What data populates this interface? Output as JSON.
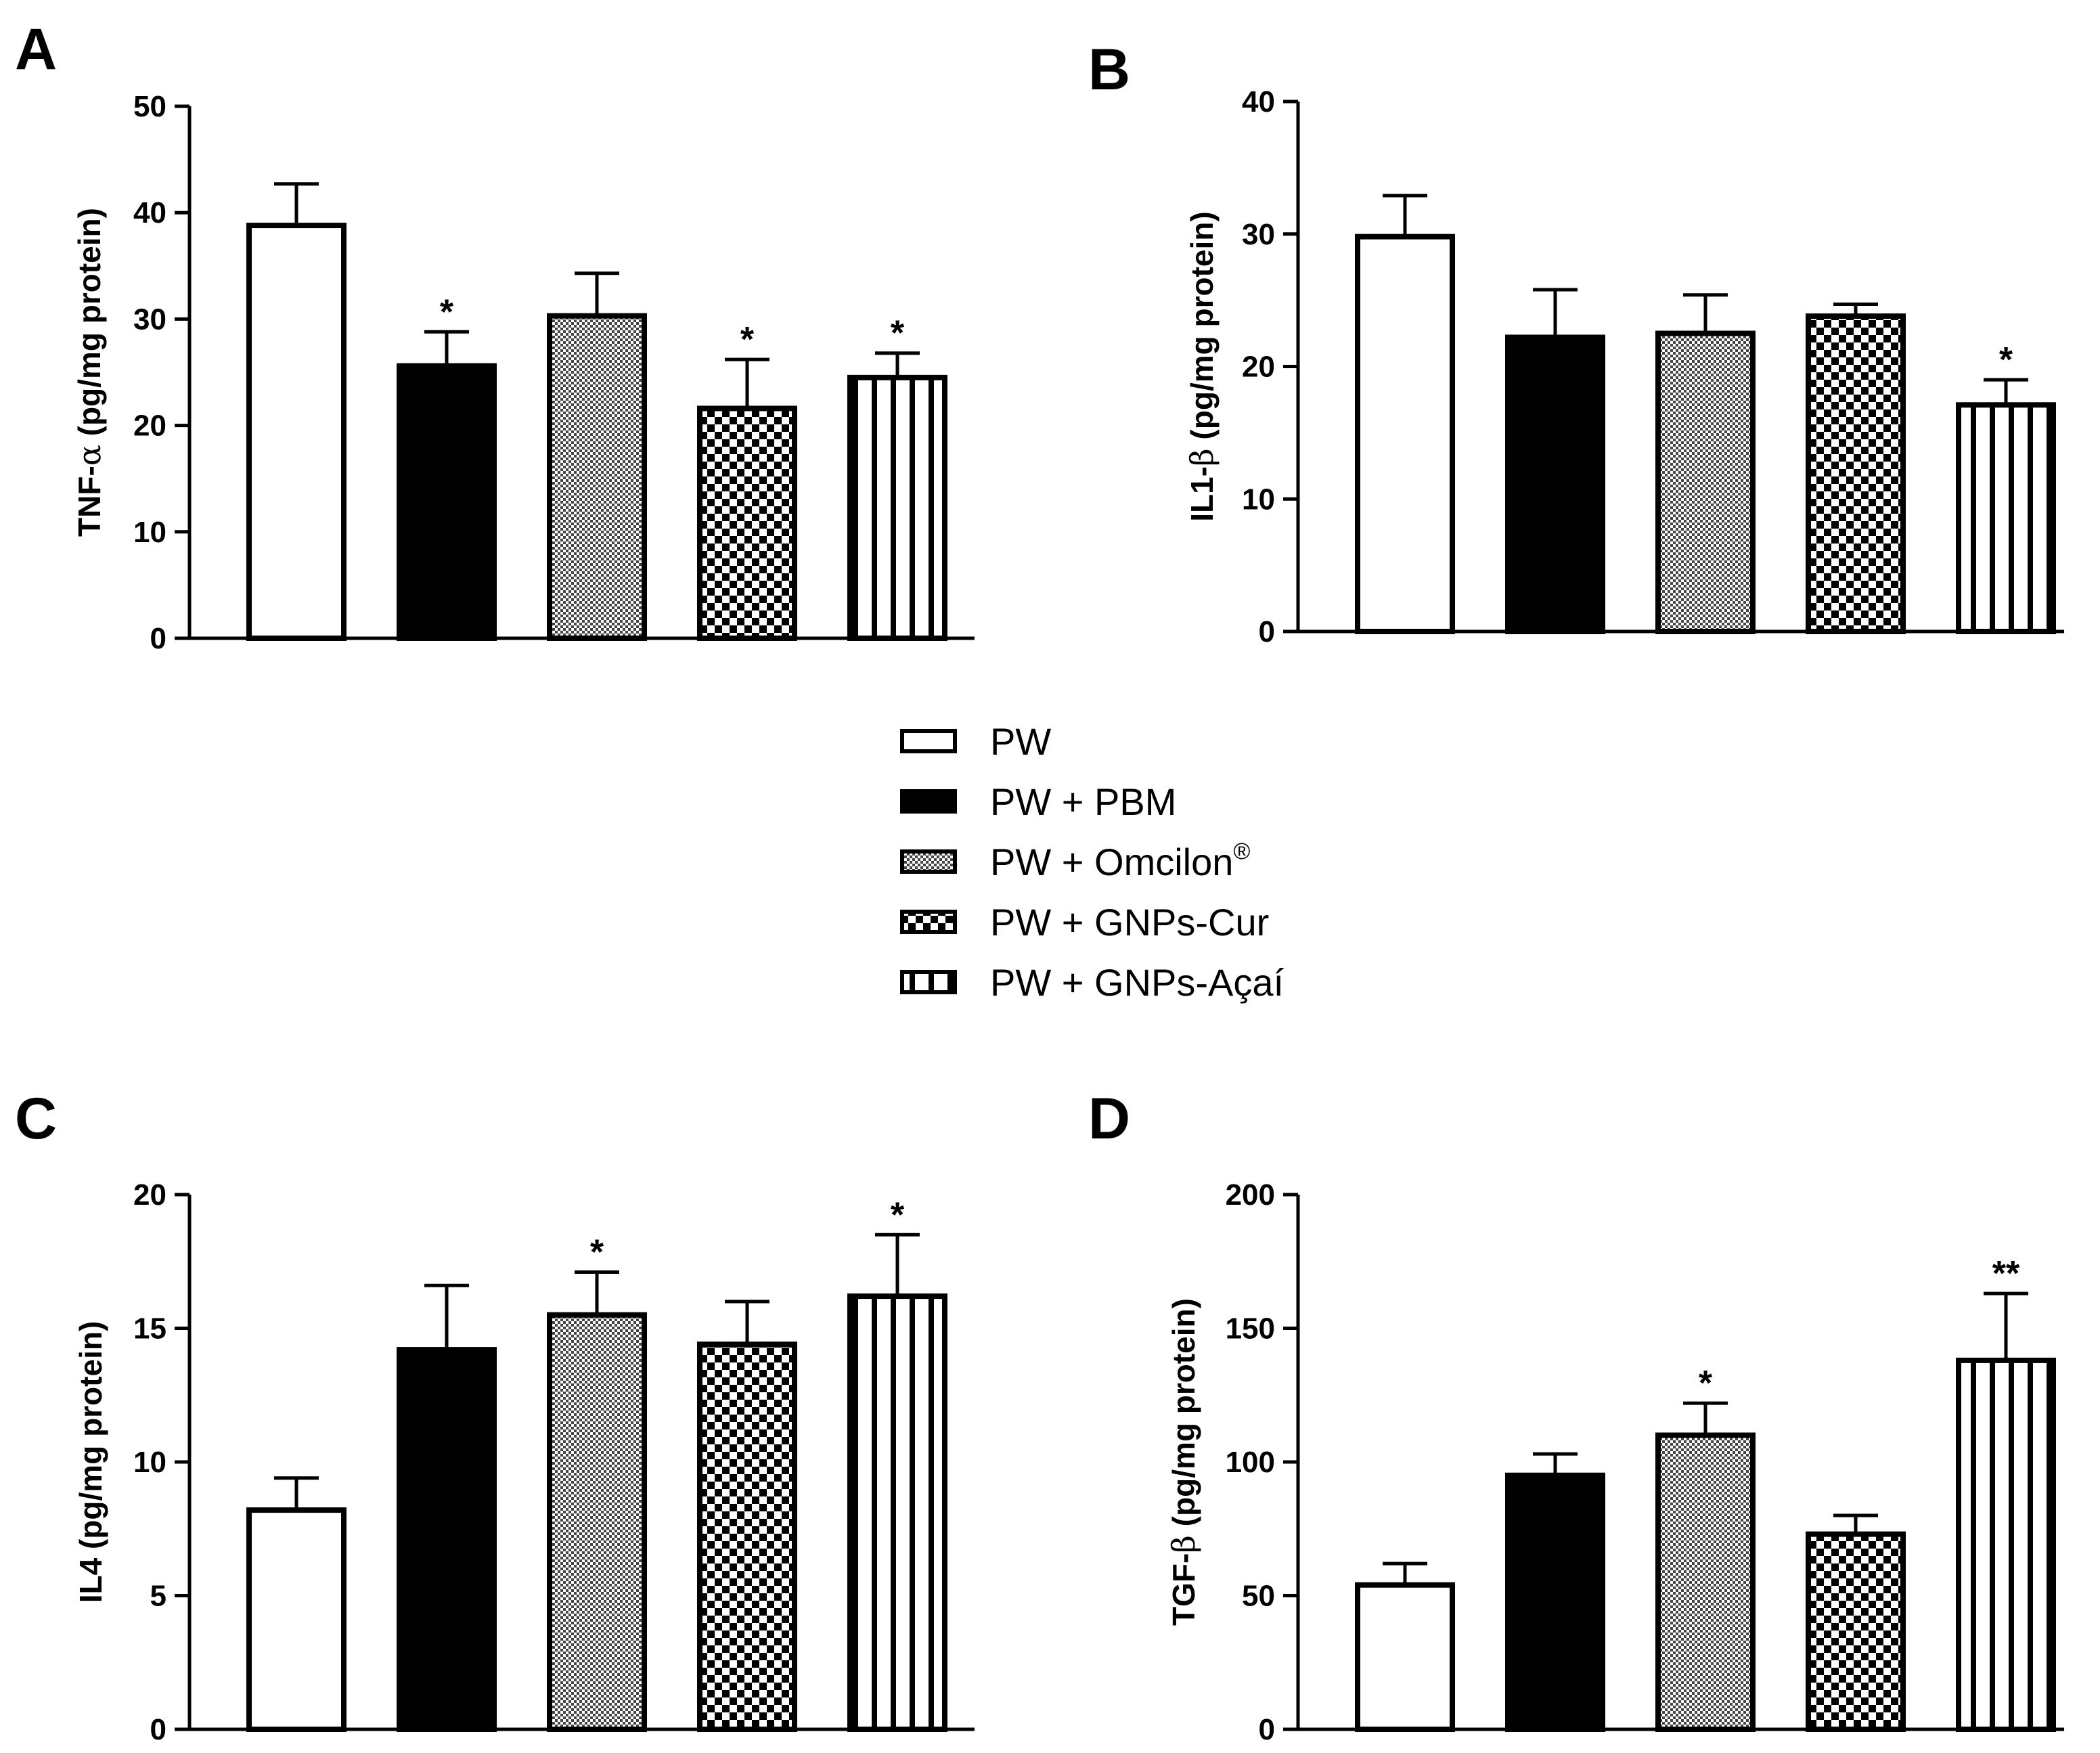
{
  "chart_data": [
    {
      "type": "bar",
      "panel": "A",
      "ylabel_prefix": "TNF-",
      "ylabel_greek": "α",
      "ylabel_suffix": " (pg/mg protein)",
      "ylim": [
        0,
        50
      ],
      "yticks": [
        "0",
        "10",
        "20",
        "30",
        "40",
        "50"
      ],
      "categories": [
        "PW",
        "PW + PBM",
        "PW + Omcilon®",
        "PW + GNPs-Cur",
        "PW + GNPs-Açaí"
      ],
      "values": [
        38.8,
        25.6,
        30.3,
        21.6,
        24.5
      ],
      "errors": [
        3.9,
        3.2,
        4.0,
        4.6,
        2.3
      ],
      "significance": [
        "",
        "*",
        "",
        "*",
        "*"
      ]
    },
    {
      "type": "bar",
      "panel": "B",
      "ylabel_prefix": "IL1-",
      "ylabel_greek": "β",
      "ylabel_suffix": " (pg/mg protein)",
      "ylim": [
        0,
        40
      ],
      "yticks": [
        "0",
        "10",
        "20",
        "30",
        "40"
      ],
      "categories": [
        "PW",
        "PW + PBM",
        "PW + Omcilon®",
        "PW + GNPs-Cur",
        "PW + GNPs-Açaí"
      ],
      "values": [
        29.8,
        22.2,
        22.5,
        23.8,
        17.1
      ],
      "errors": [
        3.1,
        3.6,
        2.9,
        0.9,
        1.9
      ],
      "significance": [
        "",
        "",
        "",
        "",
        "*"
      ]
    },
    {
      "type": "bar",
      "panel": "C",
      "ylabel_prefix": "IL4 (pg/mg protein)",
      "ylabel_greek": "",
      "ylabel_suffix": "",
      "ylim": [
        0,
        20
      ],
      "yticks": [
        "0",
        "5",
        "10",
        "15",
        "20"
      ],
      "categories": [
        "PW",
        "PW + PBM",
        "PW + Omcilon®",
        "PW + GNPs-Cur",
        "PW + GNPs-Açaí"
      ],
      "values": [
        8.2,
        14.2,
        15.5,
        14.4,
        16.2
      ],
      "errors": [
        1.2,
        2.4,
        1.6,
        1.6,
        2.3
      ],
      "significance": [
        "",
        "",
        "*",
        "",
        "*"
      ]
    },
    {
      "type": "bar",
      "panel": "D",
      "ylabel_prefix": "TGF-",
      "ylabel_greek": "β",
      "ylabel_suffix": " (pg/mg protein)",
      "ylim": [
        0,
        200
      ],
      "yticks": [
        "0",
        "50",
        "100",
        "150",
        "200"
      ],
      "categories": [
        "PW",
        "PW + PBM",
        "PW + Omcilon®",
        "PW + GNPs-Cur",
        "PW + GNPs-Açaí"
      ],
      "values": [
        54,
        95,
        110,
        73,
        138
      ],
      "errors": [
        8,
        8,
        12,
        7,
        25
      ],
      "significance": [
        "",
        "",
        "*",
        "",
        "**"
      ]
    }
  ],
  "legend": {
    "items": [
      {
        "name": "PW",
        "label": "PW",
        "sup": ""
      },
      {
        "name": "PW + PBM",
        "label": "PW + PBM",
        "sup": ""
      },
      {
        "name": "PW + Omcilon",
        "label": "PW + Omcilon",
        "sup": "®"
      },
      {
        "name": "PW + GNPs-Cur",
        "label": "PW + GNPs-Cur",
        "sup": ""
      },
      {
        "name": "PW + GNPs-Açaí",
        "label": "PW + GNPs-Açaí",
        "sup": ""
      }
    ]
  },
  "colors": {
    "ink": "#000000",
    "background": "#ffffff"
  }
}
